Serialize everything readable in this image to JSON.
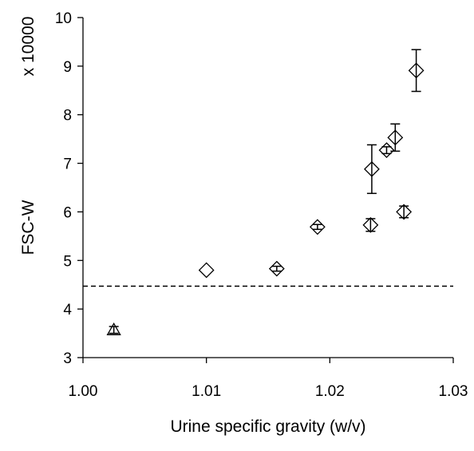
{
  "chart_data": {
    "type": "scatter",
    "title": "",
    "xlabel": "Urine specific gravity (w/v)",
    "ylabel": "FSC-W",
    "y_multiplier_label": "x 10000",
    "xlim": [
      1.0,
      1.03
    ],
    "ylim": [
      3,
      10
    ],
    "x_ticks": [
      "1.00",
      "1.01",
      "1.02",
      "1.03"
    ],
    "y_ticks": [
      "3",
      "4",
      "5",
      "6",
      "7",
      "8",
      "9",
      "10"
    ],
    "grid": false,
    "legend": "none",
    "reference_line": {
      "y": 4.47,
      "style": "dashed",
      "x_range": [
        1.0,
        1.03
      ]
    },
    "series": [
      {
        "marker": "triangle",
        "points": [
          {
            "x": 1.0025,
            "y": 3.57,
            "err": 0.07
          }
        ]
      },
      {
        "marker": "diamond",
        "points": [
          {
            "x": 1.01,
            "y": 4.8,
            "err": 0.0
          },
          {
            "x": 1.0157,
            "y": 4.83,
            "err": 0.05
          },
          {
            "x": 1.019,
            "y": 5.69,
            "err": 0.05
          },
          {
            "x": 1.0233,
            "y": 5.73,
            "err": 0.13
          },
          {
            "x": 1.0234,
            "y": 6.88,
            "err": 0.5
          },
          {
            "x": 1.0246,
            "y": 7.27,
            "err": 0.07
          },
          {
            "x": 1.0253,
            "y": 7.53,
            "err": 0.28
          },
          {
            "x": 1.026,
            "y": 6.0,
            "err": 0.12
          },
          {
            "x": 1.027,
            "y": 8.91,
            "err": 0.43
          }
        ]
      }
    ]
  }
}
